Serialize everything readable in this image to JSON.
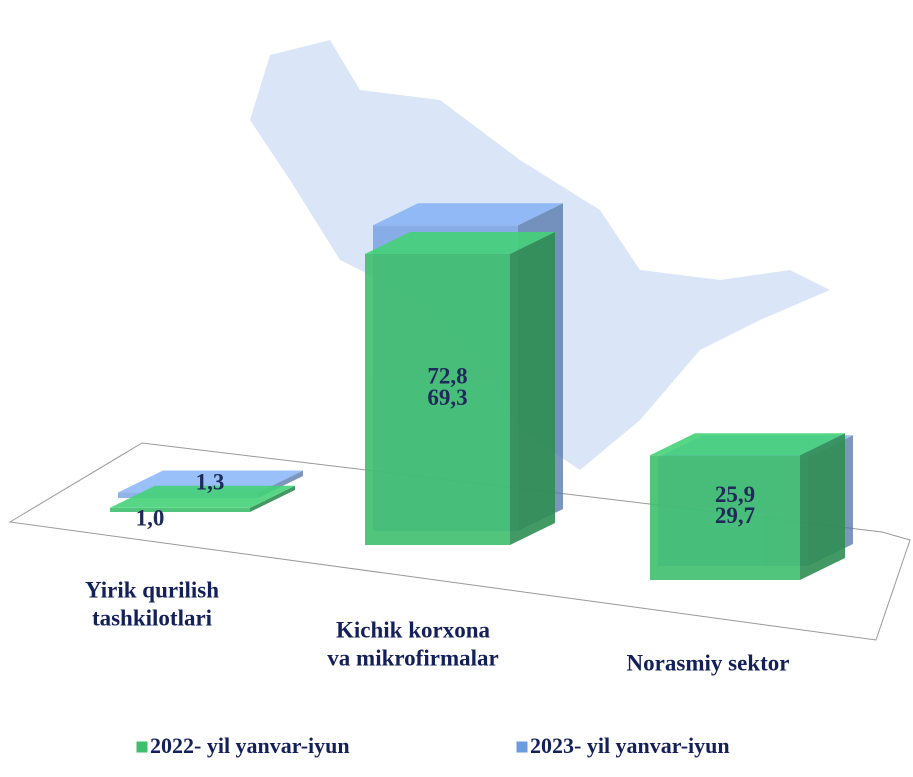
{
  "chart_data": {
    "type": "bar3d",
    "categories": [
      [
        "Yirik qurilish",
        "tashkilotlari"
      ],
      [
        "Kichik korxona",
        "va mikrofirmalar"
      ],
      [
        "Norasmiy sektor"
      ]
    ],
    "series": [
      {
        "name": "2022- yil yanvar-iyun",
        "color": "#3fbf6e",
        "values": [
          1.0,
          69.3,
          29.7
        ],
        "value_labels": [
          "1,0",
          "69,3",
          "29,7"
        ]
      },
      {
        "name": "2023- yil yanvar-iyun",
        "color": "#6d9be0",
        "values": [
          1.3,
          72.8,
          25.9
        ],
        "value_labels": [
          "1,3",
          "72,8",
          "25,9"
        ]
      }
    ]
  }
}
